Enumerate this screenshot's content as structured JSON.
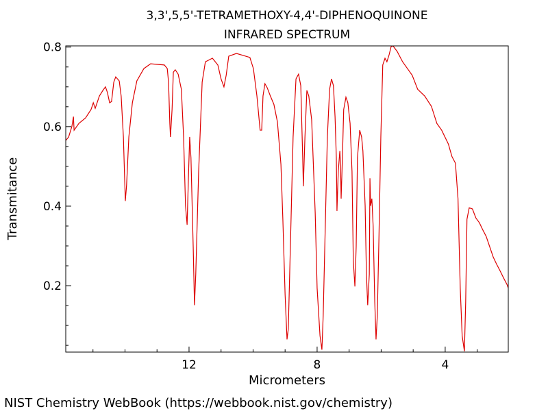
{
  "chart_data": {
    "type": "line",
    "title": "3,3',5,5'-TETRAMETHOXY-4,4'-DIPHENOQUINONE",
    "subtitle": "INFRARED SPECTRUM",
    "x_label": "Micrometers",
    "y_label": "Transmitance",
    "source": "NIST Chemistry WebBook (https://webbook.nist.gov/chemistry)",
    "xlim": [
      15.85,
      2.03
    ],
    "ylim": [
      0.033,
      0.803
    ],
    "xticks": [
      12,
      8,
      4
    ],
    "yticks": [
      0.2,
      0.4,
      0.6,
      0.8
    ],
    "xticks_minor": [
      15,
      14,
      13,
      11,
      10,
      9,
      7,
      6,
      5,
      3
    ],
    "yticks_minor": [
      0.05,
      0.1,
      0.15,
      0.25,
      0.3,
      0.35,
      0.45,
      0.5,
      0.55,
      0.65,
      0.7,
      0.75
    ],
    "x": [
      15.85,
      15.76,
      15.66,
      15.61,
      15.59,
      15.44,
      15.23,
      15.06,
      14.99,
      14.93,
      14.8,
      14.69,
      14.61,
      14.55,
      14.48,
      14.42,
      14.35,
      14.29,
      14.18,
      14.12,
      14.05,
      13.99,
      13.95,
      13.88,
      13.77,
      13.63,
      13.41,
      13.2,
      12.77,
      12.68,
      12.64,
      12.6,
      12.58,
      12.53,
      12.49,
      12.43,
      12.34,
      12.24,
      12.17,
      12.11,
      12.06,
      12.02,
      11.98,
      11.94,
      11.87,
      11.83,
      11.79,
      11.7,
      11.59,
      11.49,
      11.27,
      11.1,
      11.0,
      10.91,
      10.84,
      10.76,
      10.52,
      10.1,
      9.99,
      9.88,
      9.78,
      9.73,
      9.69,
      9.63,
      9.56,
      9.46,
      9.35,
      9.24,
      9.13,
      9.07,
      9.0,
      8.94,
      8.9,
      8.83,
      8.75,
      8.66,
      8.58,
      8.51,
      8.45,
      8.43,
      8.38,
      8.32,
      8.26,
      8.17,
      8.06,
      8.0,
      7.91,
      7.85,
      7.81,
      7.74,
      7.68,
      7.61,
      7.55,
      7.49,
      7.44,
      7.4,
      7.38,
      7.34,
      7.29,
      7.27,
      7.25,
      7.21,
      7.17,
      7.1,
      7.04,
      6.97,
      6.91,
      6.87,
      6.82,
      6.78,
      6.74,
      6.67,
      6.61,
      6.57,
      6.5,
      6.46,
      6.42,
      6.37,
      6.35,
      6.33,
      6.29,
      6.25,
      6.2,
      6.16,
      6.12,
      6.07,
      6.01,
      5.95,
      5.88,
      5.82,
      5.75,
      5.69,
      5.63,
      5.5,
      5.33,
      5.18,
      5.03,
      4.86,
      4.64,
      4.43,
      4.26,
      4.11,
      3.9,
      3.79,
      3.68,
      3.6,
      3.53,
      3.47,
      3.4,
      3.36,
      3.32,
      3.25,
      3.15,
      3.04,
      2.93,
      2.83,
      2.72,
      2.61,
      2.5,
      2.4,
      2.29,
      2.18,
      2.07,
      2.03
    ],
    "series": [
      {
        "color": "#dd0000",
        "values": [
          0.565,
          0.574,
          0.6,
          0.625,
          0.591,
          0.608,
          0.622,
          0.643,
          0.66,
          0.646,
          0.677,
          0.691,
          0.7,
          0.686,
          0.66,
          0.663,
          0.712,
          0.725,
          0.715,
          0.677,
          0.574,
          0.413,
          0.453,
          0.574,
          0.66,
          0.715,
          0.746,
          0.758,
          0.755,
          0.746,
          0.712,
          0.608,
          0.574,
          0.643,
          0.737,
          0.743,
          0.732,
          0.694,
          0.574,
          0.401,
          0.353,
          0.47,
          0.574,
          0.522,
          0.298,
          0.151,
          0.229,
          0.487,
          0.712,
          0.763,
          0.772,
          0.755,
          0.72,
          0.7,
          0.729,
          0.777,
          0.784,
          0.774,
          0.746,
          0.677,
          0.591,
          0.591,
          0.677,
          0.708,
          0.698,
          0.677,
          0.656,
          0.612,
          0.505,
          0.367,
          0.177,
          0.065,
          0.091,
          0.315,
          0.574,
          0.72,
          0.732,
          0.703,
          0.522,
          0.45,
          0.574,
          0.691,
          0.677,
          0.617,
          0.384,
          0.194,
          0.074,
          0.039,
          0.125,
          0.367,
          0.574,
          0.694,
          0.72,
          0.703,
          0.625,
          0.522,
          0.388,
          0.487,
          0.539,
          0.505,
          0.419,
          0.522,
          0.643,
          0.674,
          0.66,
          0.608,
          0.487,
          0.263,
          0.198,
          0.298,
          0.522,
          0.591,
          0.574,
          0.539,
          0.401,
          0.229,
          0.151,
          0.229,
          0.47,
          0.401,
          0.419,
          0.35,
          0.16,
          0.065,
          0.125,
          0.315,
          0.574,
          0.755,
          0.772,
          0.763,
          0.781,
          0.801,
          0.803,
          0.789,
          0.763,
          0.746,
          0.729,
          0.694,
          0.677,
          0.651,
          0.608,
          0.591,
          0.556,
          0.525,
          0.508,
          0.419,
          0.194,
          0.074,
          0.035,
          0.16,
          0.367,
          0.396,
          0.393,
          0.37,
          0.358,
          0.341,
          0.324,
          0.298,
          0.272,
          0.255,
          0.238,
          0.22,
          0.203,
          0.194
        ]
      }
    ]
  }
}
